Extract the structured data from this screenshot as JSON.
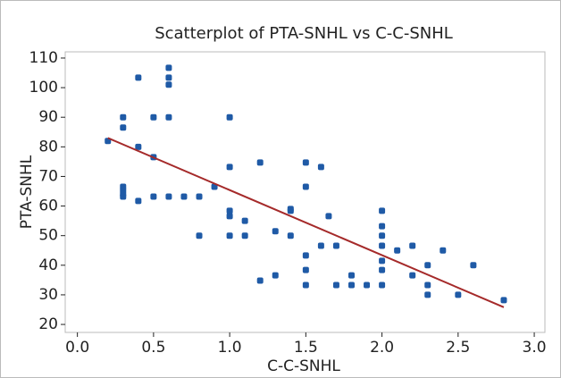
{
  "chart_data": {
    "type": "scatter",
    "title": "Scatterplot of PTA-SNHL vs C-C-SNHL",
    "x_label": "C-C-SNHL",
    "y_label": "PTA-SNHL",
    "series": [
      {
        "color": "#1f5aa6",
        "x": [
          0.2,
          0.3,
          0.3,
          0.3,
          0.3,
          0.3,
          0.3,
          0.4,
          0.4,
          0.4,
          0.5,
          0.5,
          0.5,
          0.6,
          0.6,
          0.6,
          0.6,
          0.6,
          0.7,
          0.8,
          0.8,
          0.9,
          1.0,
          1.0,
          1.0,
          1.0,
          1.0,
          1.1,
          1.1,
          1.2,
          1.2,
          1.3,
          1.3,
          1.4,
          1.4,
          1.4,
          1.5,
          1.5,
          1.5,
          1.5,
          1.5,
          1.6,
          1.6,
          1.65,
          1.7,
          1.7,
          1.8,
          1.8,
          1.9,
          2.0,
          2.0,
          2.0,
          2.0,
          2.0,
          2.0,
          2.0,
          2.1,
          2.2,
          2.2,
          2.3,
          2.3,
          2.3,
          2.4,
          2.5,
          2.6,
          2.8
        ],
        "values": [
          82,
          90,
          86.5,
          66.5,
          65.3,
          64,
          63.2,
          103.4,
          80,
          61.7,
          90,
          76.5,
          63.2,
          106.7,
          103.4,
          101,
          90,
          63.2,
          63.2,
          63.2,
          50,
          66.5,
          90,
          73.2,
          58.4,
          56.6,
          50,
          55,
          50,
          74.7,
          34.8,
          51.5,
          36.6,
          58.4,
          59,
          50,
          74.7,
          66.5,
          43.3,
          38.4,
          33.3,
          73.2,
          46.6,
          56.6,
          46.6,
          33.3,
          36.6,
          33.3,
          33.3,
          58.4,
          53.2,
          50,
          46.6,
          41.5,
          38.4,
          33.3,
          45,
          46.6,
          36.6,
          40,
          33.3,
          30,
          45,
          30,
          40,
          28.2
        ]
      }
    ],
    "fit_line": {
      "x": [
        0.2,
        2.8
      ],
      "values": [
        83,
        25.8
      ],
      "color": "#a52a2a"
    },
    "xlim": [
      -0.08,
      3.07
    ],
    "ylim": [
      17.3,
      112.1
    ],
    "xticks": [
      {
        "value": 0,
        "label": "0.0"
      },
      {
        "value": 0.5,
        "label": "0.5"
      },
      {
        "value": 1,
        "label": "1.0"
      },
      {
        "value": 1.5,
        "label": "1.5"
      },
      {
        "value": 2,
        "label": "2.0"
      },
      {
        "value": 2.5,
        "label": "2.5"
      },
      {
        "value": 3,
        "label": "3.0"
      }
    ],
    "yticks": [
      20,
      30,
      40,
      50,
      60,
      70,
      80,
      90,
      100,
      110
    ]
  }
}
